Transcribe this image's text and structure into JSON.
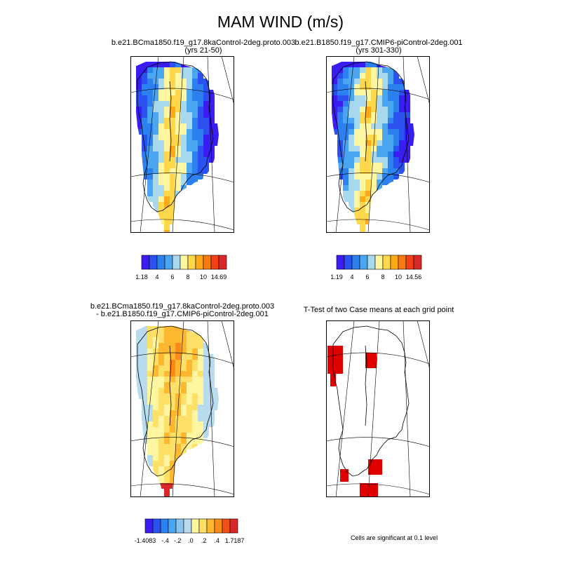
{
  "figure": {
    "title": "MAM WIND (m/s)"
  },
  "panels": {
    "case1": {
      "title_line1": "b.e21.BCma1850.f19_g17.8kaControl-2deg.proto.003",
      "title_line2": "(yrs 21-50)",
      "colorbar_labels": [
        "1.18",
        "4",
        "6",
        "8",
        "10",
        "14.69"
      ]
    },
    "case2": {
      "title_line1": "b.e21.B1850.f19_g17.CMIP6-piControl-2deg.001",
      "title_line2": "(yrs 301-330)",
      "colorbar_labels": [
        "1.19",
        "4",
        "6",
        "8",
        "10",
        "14.56"
      ]
    },
    "diff": {
      "title_line1": "b.e21.BCma1850.f19_g17.8kaControl-2deg.proto.003",
      "title_line2": "- b.e21.B1850.f19_g17.CMIP6-piControl-2deg.001",
      "colorbar_labels": [
        "-1.4083",
        "-.4",
        "-.2",
        ".0",
        ".2",
        ".4",
        "1.7187"
      ]
    },
    "ttest": {
      "title": "T-Test of two Case means at each grid point",
      "note": "Cells are significant at 0.1 level"
    }
  },
  "colors": {
    "wind_scale": [
      "#3a1df0",
      "#2b52f0",
      "#2d80f0",
      "#4aa6f0",
      "#a8d8ee",
      "#fef6a0",
      "#fed84a",
      "#feaa18",
      "#fb7a10",
      "#f24018",
      "#d82828"
    ],
    "diff_scale": [
      "#3a1df0",
      "#2b52f0",
      "#2d80f0",
      "#4aa6f0",
      "#88c4ee",
      "#b8dcee",
      "#fef6a0",
      "#fee068",
      "#feb830",
      "#fb8a18",
      "#f25018",
      "#d82828"
    ],
    "significant": "#e00000"
  }
}
